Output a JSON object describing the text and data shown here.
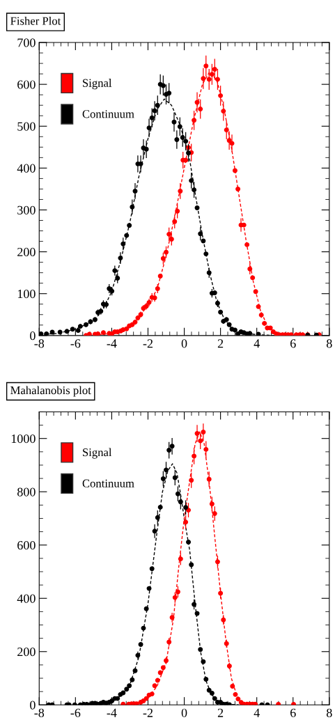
{
  "chart_data": [
    {
      "type": "scatter",
      "title": "Fisher Plot",
      "xlim": [
        -8,
        8
      ],
      "ylim": [
        0,
        700
      ],
      "xticks": [
        -8,
        -6,
        -4,
        -2,
        0,
        2,
        4,
        6,
        8
      ],
      "yticks": [
        0,
        100,
        200,
        300,
        400,
        500,
        600,
        700
      ],
      "grid": false,
      "legend": "top left",
      "marker": "circle",
      "series": [
        {
          "name": "Signal",
          "color": "#ff0000",
          "x": [
            -5.42,
            -5.23,
            -4.92,
            -4.76,
            -4.46,
            -4.14,
            -3.99,
            -3.83,
            -3.68,
            -3.5,
            -3.37,
            -3.18,
            -3.03,
            -2.87,
            -2.71,
            -2.56,
            -2.4,
            -2.25,
            -2.09,
            -1.94,
            -1.78,
            -1.63,
            -1.47,
            -1.32,
            -1.16,
            -1.0,
            -0.84,
            -0.7,
            -0.53,
            -0.38,
            -0.22,
            -0.07,
            0.08,
            0.23,
            0.39,
            0.54,
            0.71,
            0.89,
            1.05,
            1.2,
            1.37,
            1.53,
            1.68,
            1.84,
            2.0,
            2.16,
            2.33,
            2.48,
            2.63,
            2.8,
            2.96,
            3.13,
            3.29,
            3.46,
            3.62,
            3.77,
            3.94,
            4.09,
            4.25,
            4.42,
            4.58,
            4.75,
            4.91,
            5.08,
            5.24,
            5.42,
            5.57,
            5.73,
            5.9,
            6.18,
            6.37,
            6.53,
            6.81,
            7.44
          ],
          "values": [
            0,
            3,
            3,
            4,
            7,
            5,
            4,
            9,
            9,
            11,
            14,
            16,
            23,
            26,
            32,
            42,
            50,
            65,
            70,
            79,
            91,
            90,
            112,
            142,
            184,
            199,
            242,
            230,
            272,
            297,
            345,
            419,
            419,
            449,
            437,
            514,
            557,
            541,
            614,
            644,
            612,
            624,
            636,
            612,
            573,
            536,
            491,
            466,
            459,
            394,
            350,
            264,
            264,
            217,
            159,
            138,
            105,
            69,
            49,
            29,
            18,
            18,
            9,
            4,
            2,
            2,
            2,
            2,
            2,
            2,
            2,
            2,
            2,
            2
          ],
          "errors": [
            null,
            null,
            null,
            null,
            null,
            null,
            null,
            null,
            null,
            null,
            null,
            4,
            5,
            5,
            6,
            6,
            7,
            8,
            8,
            9,
            10,
            9,
            11,
            null,
            14,
            14,
            16,
            15,
            16,
            17,
            19,
            20,
            null,
            null,
            21,
            23,
            24,
            23,
            25,
            25,
            25,
            25,
            25,
            25,
            24,
            23,
            22,
            22,
            21,
            null,
            null,
            16,
            null,
            null,
            13,
            null,
            null,
            null,
            7,
            5,
            4,
            null,
            null,
            null,
            null,
            null,
            null,
            null,
            null,
            null,
            null,
            null,
            null,
            null
          ]
        },
        {
          "name": "Continuum",
          "color": "#000000",
          "x": [
            -7.9,
            -7.6,
            -7.28,
            -6.85,
            -6.47,
            -6.16,
            -5.85,
            -5.73,
            -5.42,
            -5.17,
            -4.92,
            -4.76,
            -4.6,
            -4.46,
            -4.3,
            -4.14,
            -3.99,
            -3.83,
            -3.68,
            -3.52,
            -3.37,
            -3.18,
            -3.03,
            -2.87,
            -2.71,
            -2.56,
            -2.4,
            -2.25,
            -2.09,
            -1.94,
            -1.78,
            -1.63,
            -1.47,
            -1.32,
            -1.16,
            -1.0,
            -0.84,
            -0.56,
            -0.41,
            -0.24,
            -0.09,
            0.08,
            0.23,
            0.39,
            0.54,
            0.71,
            0.89,
            1.05,
            1.2,
            1.37,
            1.53,
            1.68,
            1.84,
            2.0,
            2.16,
            2.33,
            2.48,
            2.63,
            2.8,
            2.96,
            3.13,
            3.29,
            3.46,
            3.62,
            4.09,
            6.81,
            7.29
          ],
          "values": [
            4,
            4,
            8,
            8,
            10,
            15,
            12,
            22,
            26,
            33,
            38,
            55,
            58,
            75,
            74,
            112,
            106,
            155,
            137,
            185,
            219,
            239,
            263,
            307,
            345,
            410,
            410,
            448,
            445,
            496,
            520,
            537,
            550,
            600,
            597,
            576,
            579,
            510,
            468,
            499,
            473,
            464,
            436,
            370,
            348,
            305,
            243,
            226,
            195,
            150,
            101,
            102,
            77,
            56,
            34,
            38,
            26,
            15,
            13,
            4,
            9,
            7,
            4,
            5,
            3,
            1,
            1
          ],
          "errors": [
            2,
            2,
            3,
            null,
            null,
            4,
            3,
            5,
            5,
            6,
            6,
            7,
            8,
            9,
            9,
            11,
            10,
            12,
            12,
            14,
            15,
            null,
            null,
            18,
            19,
            20,
            20,
            21,
            21,
            22,
            23,
            23,
            23,
            24,
            24,
            24,
            24,
            23,
            22,
            22,
            22,
            22,
            21,
            19,
            19,
            null,
            16,
            null,
            null,
            12,
            10,
            null,
            9,
            null,
            6,
            6,
            null,
            4,
            null,
            2,
            3,
            null,
            2,
            2,
            2,
            null,
            null
          ]
        },
        {
          "type": "line",
          "color": "#000000",
          "line_style": "dashed",
          "marker": "none",
          "x": [
            -8,
            -7,
            -6,
            -5,
            -4.5,
            -4,
            -3.5,
            -3,
            -2.5,
            -2,
            -1.5,
            -1.1,
            -0.7,
            -0.3,
            0,
            0.3,
            0.6,
            1,
            1.4,
            1.8,
            2.2,
            2.6,
            3,
            4,
            5
          ],
          "values": [
            2,
            5,
            15,
            35,
            60,
            105,
            180,
            270,
            380,
            470,
            540,
            565,
            550,
            510,
            470,
            420,
            340,
            240,
            150,
            80,
            40,
            18,
            8,
            2,
            0
          ]
        },
        {
          "type": "line",
          "color": "#ff0000",
          "line_style": "dashed",
          "marker": "none",
          "x": [
            -5.5,
            -4.5,
            -4,
            -3.5,
            -3,
            -2.5,
            -2,
            -1.5,
            -1,
            -0.5,
            0,
            0.5,
            1,
            1.4,
            1.8,
            2.2,
            2.6,
            3,
            3.4,
            3.8,
            4.2,
            4.6,
            5,
            5.5,
            6
          ],
          "values": [
            0,
            3,
            5,
            12,
            22,
            42,
            75,
            110,
            190,
            290,
            400,
            510,
            600,
            630,
            610,
            540,
            450,
            340,
            230,
            130,
            60,
            22,
            8,
            2,
            0
          ]
        }
      ]
    },
    {
      "type": "scatter",
      "title": "Mahalanobis plot",
      "xlim": [
        -8,
        8
      ],
      "ylim": [
        0,
        1100
      ],
      "xticks": [
        -8,
        -6,
        -4,
        -2,
        0,
        2,
        4,
        6,
        8
      ],
      "yticks": [
        0,
        200,
        400,
        600,
        800,
        1000
      ],
      "grid": false,
      "legend": "top left",
      "marker": "circle",
      "series": [
        {
          "name": "Signal",
          "color": "#ff0000",
          "x": [
            -3.37,
            -3.06,
            -2.9,
            -2.75,
            -2.62,
            -2.4,
            -2.25,
            -2.09,
            -1.94,
            -1.78,
            -1.63,
            -1.47,
            -1.32,
            -1.16,
            -1.0,
            -0.84,
            -0.67,
            -0.51,
            -0.35,
            -0.2,
            0.08,
            0.23,
            0.39,
            0.54,
            0.71,
            0.89,
            1.05,
            1.2,
            1.37,
            1.53,
            1.68,
            1.84,
            2.0,
            2.16,
            2.33,
            2.49,
            2.66,
            2.82,
            2.97,
            3.14,
            3.29,
            3.46,
            3.62,
            3.77,
            3.92,
            5.19,
            6.03
          ],
          "values": [
            3,
            3,
            4,
            4,
            4,
            10,
            15,
            24,
            37,
            41,
            72,
            92,
            121,
            140,
            166,
            236,
            328,
            403,
            424,
            548,
            686,
            731,
            843,
            934,
            1019,
            991,
            1024,
            959,
            847,
            754,
            718,
            537,
            419,
            319,
            230,
            146,
            70,
            39,
            22,
            9,
            3,
            3,
            3,
            3,
            3,
            2,
            2
          ],
          "errors": [
            null,
            null,
            null,
            null,
            null,
            null,
            null,
            null,
            null,
            null,
            null,
            null,
            null,
            null,
            13,
            15,
            18,
            20,
            21,
            23,
            26,
            27,
            29,
            31,
            32,
            31,
            32,
            31,
            29,
            27,
            27,
            23,
            20,
            18,
            15,
            12,
            null,
            null,
            null,
            null,
            null,
            null,
            null,
            null,
            null,
            null,
            null
          ]
        },
        {
          "name": "Continuum",
          "color": "#000000",
          "x": [
            -7.47,
            -7.28,
            -6.47,
            -6.35,
            -6.04,
            -5.73,
            -5.54,
            -5.38,
            -5.23,
            -5.07,
            -4.92,
            -4.76,
            -4.6,
            -4.46,
            -4.3,
            -4.14,
            -3.99,
            -3.83,
            -3.68,
            -3.52,
            -3.37,
            -3.18,
            -3.03,
            -2.87,
            -2.71,
            -2.56,
            -2.4,
            -2.25,
            -2.09,
            -1.94,
            -1.78,
            -1.63,
            -1.47,
            -1.32,
            -1.16,
            -1.0,
            -0.84,
            -0.67,
            -0.51,
            -0.35,
            -0.2,
            0.08,
            0.23,
            0.39,
            0.54,
            0.71,
            0.89,
            1.05,
            1.2,
            1.37,
            1.53,
            1.68,
            1.84,
            2.0,
            2.16,
            2.33,
            2.49,
            4.28,
            4.59
          ],
          "values": [
            0,
            0,
            0,
            0,
            0,
            0,
            2,
            2,
            0,
            6,
            6,
            2,
            6,
            10,
            7,
            10,
            15,
            24,
            24,
            39,
            45,
            59,
            72,
            94,
            128,
            186,
            227,
            288,
            361,
            437,
            511,
            652,
            703,
            742,
            849,
            882,
            956,
            971,
            853,
            792,
            762,
            741,
            611,
            526,
            377,
            343,
            208,
            162,
            96,
            55,
            44,
            24,
            10,
            10,
            3,
            3,
            1,
            0,
            0
          ],
          "errors": [
            null,
            null,
            null,
            null,
            null,
            null,
            null,
            null,
            null,
            null,
            null,
            null,
            null,
            null,
            null,
            null,
            null,
            null,
            null,
            null,
            null,
            null,
            null,
            null,
            null,
            14,
            null,
            null,
            null,
            null,
            null,
            26,
            27,
            null,
            29,
            30,
            31,
            31,
            29,
            28,
            28,
            27,
            null,
            null,
            19,
            null,
            null,
            null,
            null,
            null,
            null,
            null,
            null,
            null,
            null,
            null,
            null,
            null,
            null
          ]
        },
        {
          "type": "line",
          "color": "#000000",
          "line_style": "dashed",
          "marker": "none",
          "x": [
            -6,
            -5,
            -4.5,
            -4,
            -3.5,
            -3,
            -2.5,
            -2,
            -1.5,
            -1.2,
            -0.9,
            -0.65,
            -0.4,
            -0.2,
            0,
            0.3,
            0.6,
            0.9,
            1.2,
            1.5,
            1.8,
            2.2,
            3
          ],
          "values": [
            0,
            3,
            8,
            15,
            35,
            75,
            180,
            380,
            650,
            800,
            880,
            905,
            870,
            790,
            700,
            580,
            380,
            200,
            90,
            40,
            15,
            3,
            0
          ]
        },
        {
          "type": "line",
          "color": "#ff0000",
          "line_style": "dashed",
          "marker": "none",
          "x": [
            -3.5,
            -3,
            -2.5,
            -2,
            -1.5,
            -1,
            -0.6,
            -0.3,
            0,
            0.3,
            0.6,
            0.85,
            1.1,
            1.4,
            1.7,
            2,
            2.3,
            2.6,
            2.9,
            3.2,
            3.6,
            4
          ],
          "values": [
            0,
            3,
            8,
            25,
            70,
            160,
            320,
            520,
            700,
            840,
            980,
            1025,
            980,
            820,
            620,
            420,
            240,
            100,
            35,
            8,
            1,
            0
          ]
        }
      ]
    }
  ]
}
